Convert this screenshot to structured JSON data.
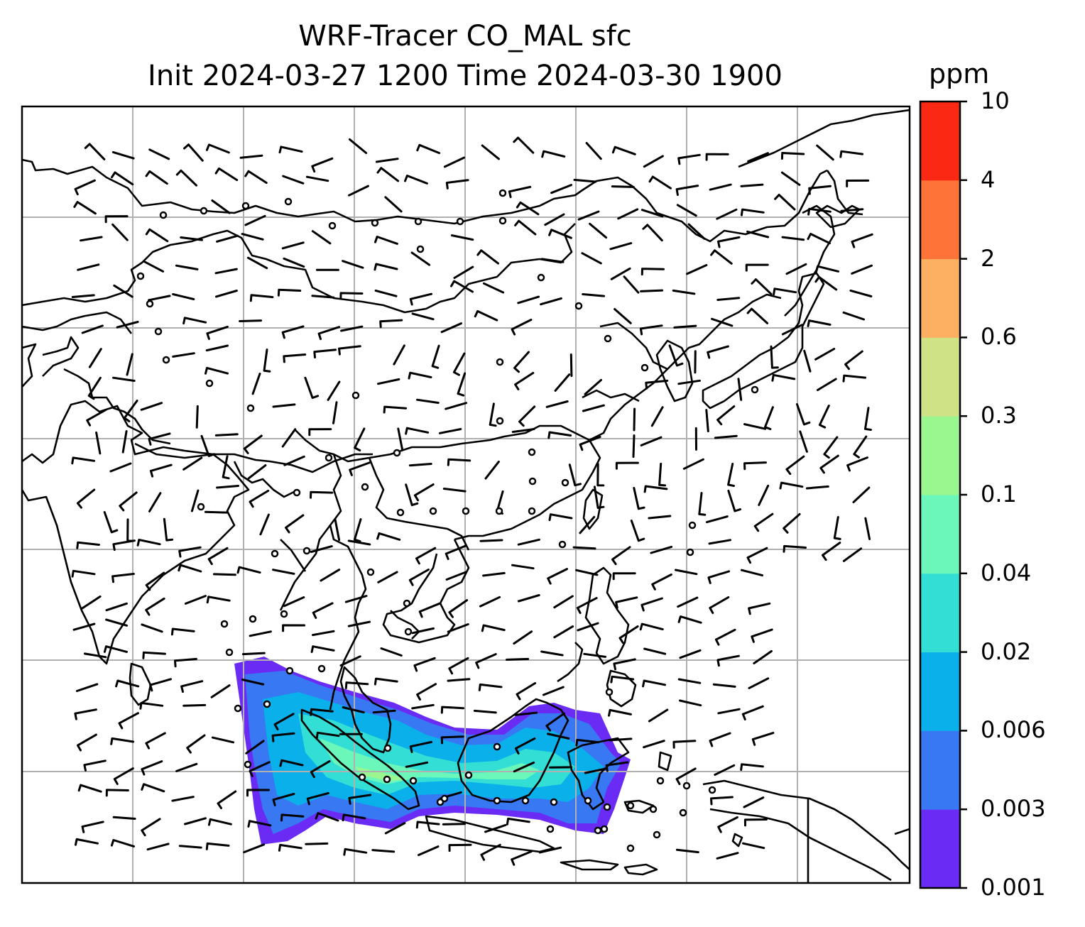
{
  "title": {
    "line1": "WRF-Tracer CO_MAL sfc",
    "line2": "Init 2024-03-27 1200 Time 2024-03-30 1900"
  },
  "colorbar": {
    "unit": "ppm",
    "levels": [
      "0.001",
      "0.003",
      "0.006",
      "0.02",
      "0.04",
      "0.1",
      "0.3",
      "0.6",
      "2",
      "4",
      "10"
    ],
    "colors": [
      "#6a2cf5",
      "#3878f2",
      "#0ab0ea",
      "#33dfd4",
      "#6af7b9",
      "#9af78f",
      "#cfe285",
      "#fdb062",
      "#fe7338",
      "#fb2913"
    ]
  },
  "map": {
    "projection": "Mercator",
    "gridlines": true,
    "coastline_color": "#000000",
    "grid_color": "#b0b0b0",
    "overlay": "wind barbs"
  }
}
